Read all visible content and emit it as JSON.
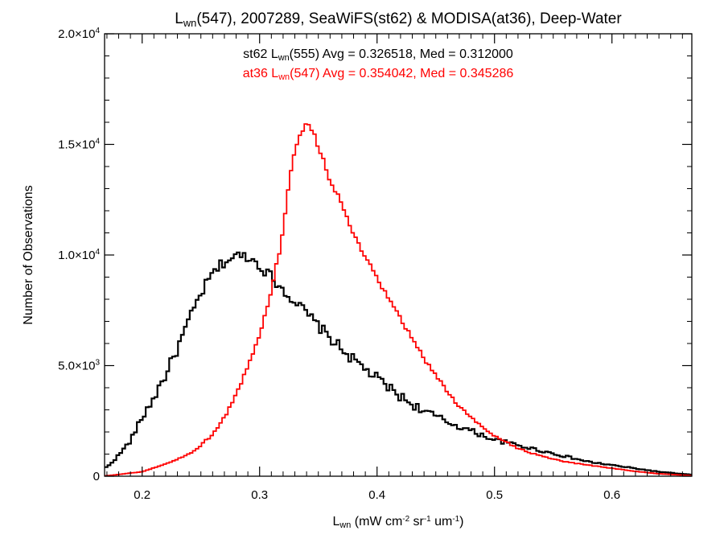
{
  "chart_data": {
    "type": "line",
    "title": {
      "parts": [
        {
          "t": "L",
          "style": "normal"
        },
        {
          "t": "wn",
          "style": "sub"
        },
        {
          "t": "(547), 2007289, SeaWiFS(st62) & MODISA(at36), Deep-Water",
          "style": "normal"
        }
      ]
    },
    "xlabel": {
      "parts": [
        {
          "t": "L",
          "style": "normal"
        },
        {
          "t": "wn",
          "style": "sub"
        },
        {
          "t": " (mW cm",
          "style": "normal"
        },
        {
          "t": "-2",
          "style": "sup"
        },
        {
          "t": " sr",
          "style": "normal"
        },
        {
          "t": "-1",
          "style": "sup"
        },
        {
          "t": " um",
          "style": "normal"
        },
        {
          "t": "-1",
          "style": "sup"
        },
        {
          "t": ")",
          "style": "normal"
        }
      ]
    },
    "ylabel": "Number of Observations",
    "xlim": [
      0.168,
      0.668
    ],
    "ylim": [
      0,
      20000
    ],
    "xticks": [
      {
        "value": 0.2,
        "label": "0.2"
      },
      {
        "value": 0.3,
        "label": "0.3"
      },
      {
        "value": 0.4,
        "label": "0.4"
      },
      {
        "value": 0.5,
        "label": "0.5"
      },
      {
        "value": 0.6,
        "label": "0.6"
      }
    ],
    "yticks": [
      {
        "value": 0,
        "mant": "0",
        "exp": ""
      },
      {
        "value": 5000,
        "mant": "5.0×10",
        "exp": "3"
      },
      {
        "value": 10000,
        "mant": "1.0×10",
        "exp": "4"
      },
      {
        "value": 15000,
        "mant": "1.5×10",
        "exp": "4"
      },
      {
        "value": 20000,
        "mant": "2.0×10",
        "exp": "4"
      }
    ],
    "annotations": [
      {
        "color": "#000000",
        "parts": [
          {
            "t": "st62 L",
            "style": "normal"
          },
          {
            "t": "wn",
            "style": "sub"
          },
          {
            "t": "(555) Avg = 0.326518, Med = 0.312000",
            "style": "normal"
          }
        ]
      },
      {
        "color": "#ff0000",
        "parts": [
          {
            "t": "at36 L",
            "style": "normal"
          },
          {
            "t": "wn",
            "style": "sub"
          },
          {
            "t": "(547) Avg = 0.354042, Med = 0.345286",
            "style": "normal"
          }
        ]
      }
    ],
    "bin_width": 0.0025,
    "series": [
      {
        "name": "st62",
        "color": "#000000",
        "x": [
          0.17,
          0.18,
          0.19,
          0.2,
          0.21,
          0.22,
          0.23,
          0.24,
          0.25,
          0.26,
          0.27,
          0.28,
          0.29,
          0.3,
          0.31,
          0.32,
          0.33,
          0.34,
          0.35,
          0.36,
          0.37,
          0.38,
          0.39,
          0.4,
          0.41,
          0.42,
          0.43,
          0.44,
          0.45,
          0.46,
          0.47,
          0.48,
          0.49,
          0.5,
          0.52,
          0.54,
          0.56,
          0.58,
          0.6,
          0.62,
          0.64,
          0.66,
          0.668
        ],
        "y": [
          400,
          950,
          1600,
          2650,
          3550,
          4600,
          5750,
          7050,
          8250,
          9150,
          9700,
          9950,
          9950,
          9550,
          9000,
          8450,
          7900,
          7350,
          6800,
          6250,
          5750,
          5250,
          4850,
          4400,
          4000,
          3600,
          3250,
          2950,
          2700,
          2450,
          2250,
          2050,
          1850,
          1650,
          1400,
          1150,
          900,
          650,
          500,
          350,
          200,
          100,
          70
        ],
        "jitter": 250
      },
      {
        "name": "at36",
        "color": "#ff0000",
        "x": [
          0.17,
          0.2,
          0.22,
          0.24,
          0.25,
          0.26,
          0.27,
          0.28,
          0.29,
          0.3,
          0.31,
          0.32,
          0.325,
          0.33,
          0.335,
          0.34,
          0.345,
          0.35,
          0.36,
          0.37,
          0.38,
          0.39,
          0.4,
          0.41,
          0.42,
          0.43,
          0.44,
          0.45,
          0.46,
          0.47,
          0.48,
          0.49,
          0.5,
          0.52,
          0.54,
          0.56,
          0.58,
          0.6,
          0.62,
          0.64,
          0.66,
          0.668
        ],
        "y": [
          20,
          200,
          550,
          1000,
          1400,
          1900,
          2650,
          3700,
          4900,
          6300,
          8400,
          11000,
          13200,
          14800,
          15600,
          15900,
          15600,
          14900,
          13400,
          12300,
          10900,
          9900,
          8900,
          8000,
          7100,
          6200,
          5300,
          4600,
          3800,
          3150,
          2650,
          2200,
          1850,
          1250,
          900,
          650,
          500,
          360,
          220,
          110,
          50,
          30
        ],
        "jitter": 110
      }
    ]
  }
}
